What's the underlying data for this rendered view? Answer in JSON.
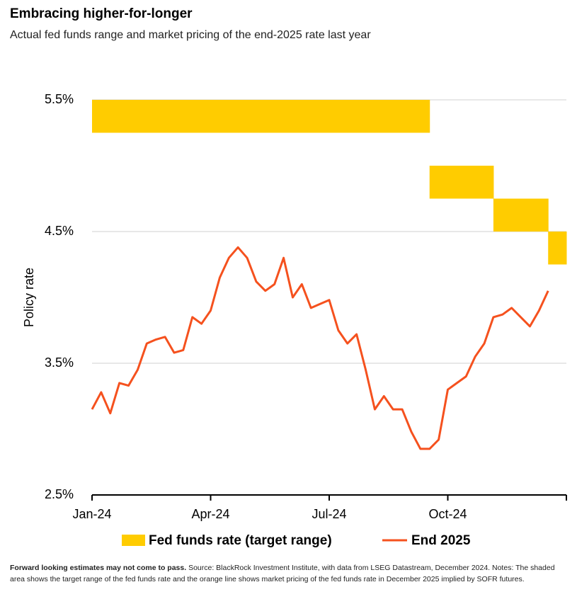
{
  "title": "Embracing higher-for-longer",
  "subtitle": "Actual fed funds range and market pricing of the end-2025 rate last year",
  "chart_data": {
    "type": "band-line",
    "y_label": "Policy rate",
    "categories": [
      "Jan-24",
      null,
      null,
      null,
      null,
      null,
      null,
      null,
      null,
      null,
      null,
      null,
      null,
      "Apr-24",
      null,
      null,
      null,
      null,
      null,
      null,
      null,
      null,
      null,
      null,
      null,
      null,
      "Jul-24",
      null,
      null,
      null,
      null,
      null,
      null,
      null,
      null,
      null,
      null,
      null,
      null,
      "Oct-24",
      null,
      null,
      null,
      null,
      null,
      null,
      null,
      null,
      null,
      null,
      null,
      null,
      null
    ],
    "series": [
      {
        "name": "Fed funds rate (target range)",
        "color": "#ffcc00",
        "low": [
          5.25,
          5.25,
          5.25,
          5.25,
          5.25,
          5.25,
          5.25,
          5.25,
          5.25,
          5.25,
          5.25,
          5.25,
          5.25,
          5.25,
          5.25,
          5.25,
          5.25,
          5.25,
          5.25,
          5.25,
          5.25,
          5.25,
          5.25,
          5.25,
          5.25,
          5.25,
          5.25,
          5.25,
          5.25,
          5.25,
          5.25,
          5.25,
          5.25,
          5.25,
          5.25,
          5.25,
          5.25,
          4.75,
          4.75,
          4.75,
          4.75,
          4.75,
          4.75,
          4.75,
          4.5,
          4.5,
          4.5,
          4.5,
          4.5,
          4.5,
          4.25,
          4.25,
          4.25
        ],
        "high": [
          5.5,
          5.5,
          5.5,
          5.5,
          5.5,
          5.5,
          5.5,
          5.5,
          5.5,
          5.5,
          5.5,
          5.5,
          5.5,
          5.5,
          5.5,
          5.5,
          5.5,
          5.5,
          5.5,
          5.5,
          5.5,
          5.5,
          5.5,
          5.5,
          5.5,
          5.5,
          5.5,
          5.5,
          5.5,
          5.5,
          5.5,
          5.5,
          5.5,
          5.5,
          5.5,
          5.5,
          5.5,
          5.0,
          5.0,
          5.0,
          5.0,
          5.0,
          5.0,
          5.0,
          4.75,
          4.75,
          4.75,
          4.75,
          4.75,
          4.75,
          4.5,
          4.5,
          4.5
        ]
      },
      {
        "name": "End 2025",
        "color": "#f5511e",
        "values": [
          3.15,
          3.28,
          3.12,
          3.35,
          3.33,
          3.45,
          3.65,
          3.68,
          3.7,
          3.58,
          3.6,
          3.85,
          3.8,
          3.9,
          4.15,
          4.3,
          4.38,
          4.3,
          4.12,
          4.05,
          4.1,
          4.3,
          4.0,
          4.1,
          3.92,
          3.95,
          3.98,
          3.75,
          3.65,
          3.72,
          3.45,
          3.15,
          3.25,
          3.15,
          3.15,
          2.98,
          2.85,
          2.85,
          2.92,
          3.3,
          3.35,
          3.4,
          3.55,
          3.65,
          3.85,
          3.87,
          3.92,
          3.85,
          3.78,
          3.9,
          4.05,
          null,
          null
        ]
      }
    ],
    "ylim": [
      2.5,
      5.5
    ],
    "yticks": [
      {
        "value": 2.5,
        "label": "2.5%"
      },
      {
        "value": 3.5,
        "label": "3.5%"
      },
      {
        "value": 4.5,
        "label": "4.5%"
      },
      {
        "value": 5.5,
        "label": "5.5%"
      }
    ],
    "grid": true
  },
  "note": {
    "bold": "Forward looking estimates may not come to pass.",
    "text": " Source: BlackRock Investment Institute, with data from LSEG Datastream, December 2024. Notes: The shaded area shows the target range of the fed funds rate and the orange line shows market pricing of the fed funds rate in December 2025 implied by SOFR futures."
  }
}
